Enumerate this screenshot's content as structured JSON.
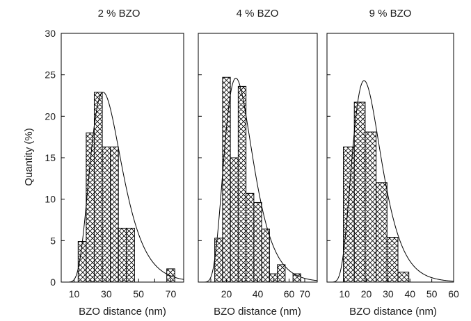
{
  "chart_data": [
    {
      "type": "bar",
      "title": "2 % BZO",
      "xlabel": "BZO distance (nm)",
      "ylabel": "Quantity (%)",
      "xlim": [
        2,
        78
      ],
      "ylim": [
        0,
        30
      ],
      "xticks": [
        10,
        20,
        30,
        40,
        50,
        60,
        70
      ],
      "xtick_labels": [
        "10",
        "30",
        "50",
        "70"
      ],
      "yticks": [
        0,
        5,
        10,
        15,
        20,
        25,
        30
      ],
      "bin_width": 5,
      "bin_centers": [
        15,
        20,
        25,
        30,
        35,
        40,
        45,
        50,
        55,
        60,
        65,
        70
      ],
      "values": [
        4.9,
        18.0,
        22.9,
        16.3,
        16.3,
        6.5,
        6.5,
        0,
        0,
        0,
        0,
        1.6
      ],
      "fit": {
        "shape": "lognormal",
        "peak_x": 28,
        "peak_y": 22.9
      }
    },
    {
      "type": "bar",
      "title": "4 % BZO",
      "xlabel": "BZO distance (nm)",
      "ylabel": "",
      "xlim": [
        2,
        78
      ],
      "ylim": [
        0,
        30
      ],
      "xticks": [
        10,
        20,
        30,
        40,
        50,
        60,
        70
      ],
      "xtick_labels": [
        "20",
        "40",
        "60",
        "70"
      ],
      "yticks": [
        0,
        5,
        10,
        15,
        20,
        25,
        30
      ],
      "bin_width": 5,
      "bin_centers": [
        15,
        20,
        25,
        30,
        35,
        40,
        45,
        50,
        55,
        60,
        65,
        70,
        75
      ],
      "values": [
        5.3,
        24.7,
        15.0,
        23.6,
        10.7,
        9.6,
        6.4,
        1.0,
        2.1,
        0,
        1.0,
        0,
        0
      ],
      "fit": {
        "shape": "lognormal",
        "peak_x": 26,
        "peak_y": 24.6
      }
    },
    {
      "type": "bar",
      "title": "9 % BZO",
      "xlabel": "BZO distance (nm)",
      "ylabel": "",
      "xlim": [
        2,
        60
      ],
      "ylim": [
        0,
        30
      ],
      "xticks": [
        10,
        20,
        30,
        40,
        50,
        60
      ],
      "xtick_labels": [
        "10",
        "20",
        "30",
        "40",
        "50",
        "60"
      ],
      "yticks": [
        0,
        5,
        10,
        15,
        20,
        25,
        30
      ],
      "bin_width": 5,
      "bin_centers": [
        12,
        17,
        22,
        27,
        32,
        37,
        42,
        47
      ],
      "values": [
        16.3,
        21.7,
        18.1,
        12.0,
        5.4,
        1.2,
        0,
        0
      ],
      "fit": {
        "shape": "lognormal",
        "peak_x": 19,
        "peak_y": 24.3
      }
    }
  ]
}
